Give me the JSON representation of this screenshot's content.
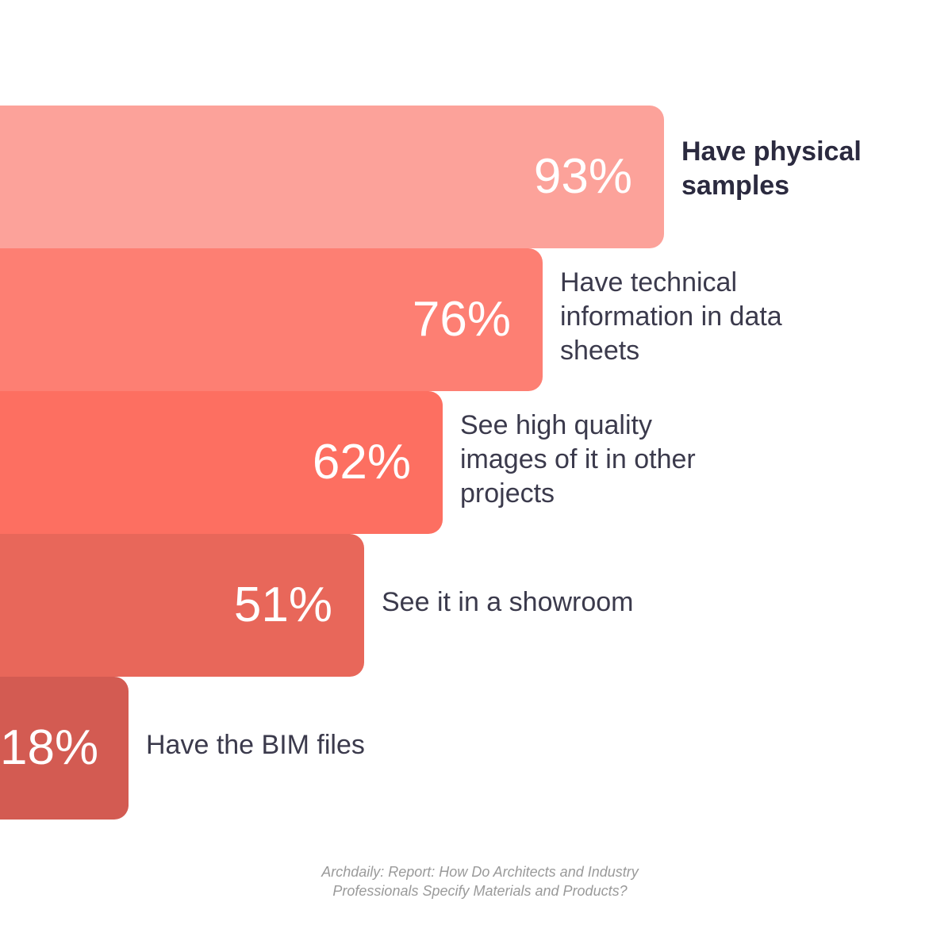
{
  "chart_data": {
    "type": "bar",
    "orientation": "horizontal",
    "categories": [
      "Have physical samples",
      "Have technical information in data sheets",
      "See high quality images of it in other projects",
      "See it in a showroom",
      "Have the BIM files"
    ],
    "values": [
      93,
      76,
      62,
      51,
      18
    ],
    "value_labels": [
      "93%",
      "76%",
      "62%",
      "51%",
      "18%"
    ],
    "colors": [
      "#fca29a",
      "#fd7f73",
      "#fd6f61",
      "#e8675a",
      "#d35b52"
    ],
    "xlim": [
      0,
      100
    ],
    "source": "Archdaily: Report: How Do Architects and Industry Professionals Specify Materials and Products?"
  }
}
